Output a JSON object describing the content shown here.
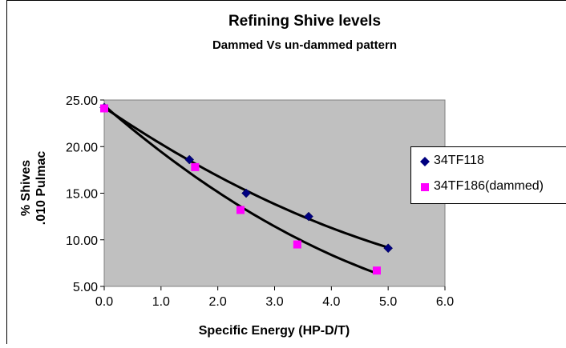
{
  "chart_data": {
    "type": "scatter",
    "title": "Refining Shive levels",
    "subtitle": "Dammed Vs un-dammed pattern",
    "xlabel": "Specific Energy (HP-D/T)",
    "ylabel_line1": "% Shives",
    "ylabel_line2": ".010 Pulmac",
    "xlim": [
      0,
      6
    ],
    "ylim": [
      5,
      25
    ],
    "x_ticks": [
      "0.0",
      "1.0",
      "2.0",
      "3.0",
      "4.0",
      "5.0",
      "6.0"
    ],
    "y_ticks": [
      "5.00",
      "10.00",
      "15.00",
      "20.00",
      "25.00"
    ],
    "grid": false,
    "legend_position": "right",
    "plot_background": "#c0c0c0",
    "series": [
      {
        "name": "34TF118",
        "marker": "diamond",
        "color": "#000080",
        "points": [
          [
            0.0,
            24.2
          ],
          [
            1.5,
            18.6
          ],
          [
            2.5,
            15.0
          ],
          [
            3.6,
            12.5
          ],
          [
            5.0,
            9.1
          ]
        ],
        "trendline": true
      },
      {
        "name": "34TF186(dammed)",
        "marker": "square",
        "color": "#ff00ff",
        "points": [
          [
            0.0,
            24.1
          ],
          [
            1.6,
            17.8
          ],
          [
            2.4,
            13.2
          ],
          [
            3.4,
            9.5
          ],
          [
            4.8,
            6.7
          ]
        ],
        "trendline": true
      }
    ]
  }
}
